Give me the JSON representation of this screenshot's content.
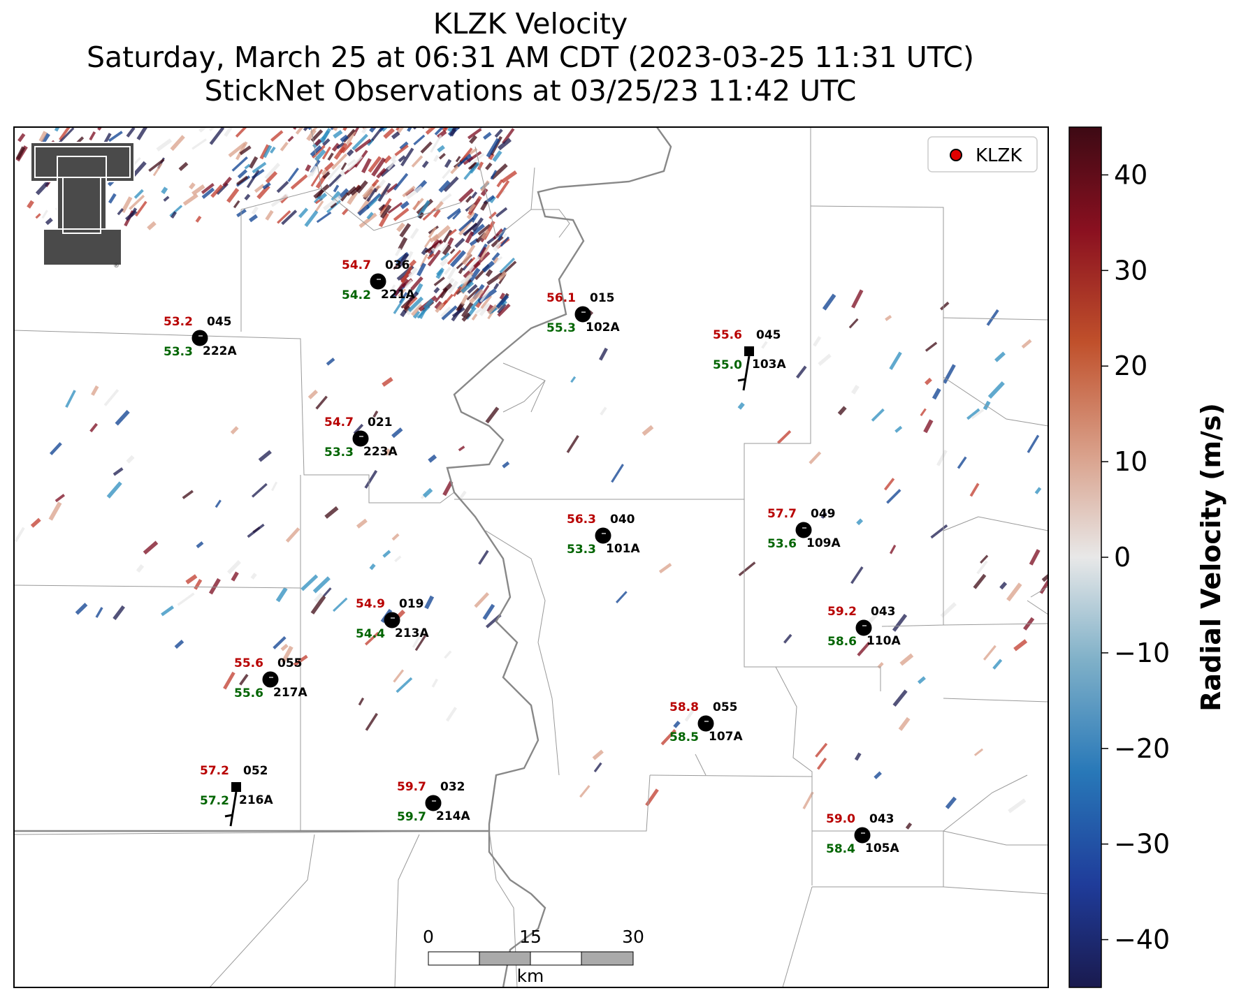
{
  "title": {
    "line1": "KLZK Velocity",
    "line2": "Saturday, March 25 at 06:31 AM CDT (2023-03-25 11:31 UTC)",
    "line3": "StickNet Observations at 03/25/23 11:42 UTC"
  },
  "legend": {
    "label": "KLZK",
    "marker_color": "#e00000"
  },
  "colorbar": {
    "label": "Radial Velocity (m/s)",
    "range": [
      -45,
      45
    ],
    "ticks": [
      "40",
      "30",
      "20",
      "10",
      "0",
      "−10",
      "−20",
      "−30",
      "−40"
    ],
    "tick_values": [
      40,
      30,
      20,
      10,
      0,
      -10,
      -20,
      -30,
      -40
    ],
    "colors": [
      "#e8e8e8",
      "#2b8cbe",
      "#0a3d8f",
      "#1a1a4e",
      "#d9a08a",
      "#c0392b",
      "#7a0a1e",
      "#3d0a14"
    ]
  },
  "scale_bar": {
    "ticks": [
      "0",
      "15",
      "30"
    ],
    "unit": "km"
  },
  "stations": [
    {
      "id": "221A",
      "temp": "54.7",
      "dew": "54.2",
      "dir": "036"
    },
    {
      "id": "222A",
      "temp": "53.2",
      "dew": "53.3",
      "dir": "045"
    },
    {
      "id": "102A",
      "temp": "56.1",
      "dew": "55.3",
      "dir": "015"
    },
    {
      "id": "103A",
      "temp": "55.6",
      "dew": "55.0",
      "dir": "045"
    },
    {
      "id": "223A",
      "temp": "54.7",
      "dew": "53.3",
      "dir": "021"
    },
    {
      "id": "101A",
      "temp": "56.3",
      "dew": "53.3",
      "dir": "040"
    },
    {
      "id": "109A",
      "temp": "57.7",
      "dew": "53.6",
      "dir": "049"
    },
    {
      "id": "213A",
      "temp": "54.9",
      "dew": "54.4",
      "dir": "019"
    },
    {
      "id": "110A",
      "temp": "59.2",
      "dew": "58.6",
      "dir": "043"
    },
    {
      "id": "217A",
      "temp": "55.6",
      "dew": "55.6",
      "dir": "055"
    },
    {
      "id": "107A",
      "temp": "58.8",
      "dew": "58.5",
      "dir": "055"
    },
    {
      "id": "216A",
      "temp": "57.2",
      "dew": "57.2",
      "dir": "052"
    },
    {
      "id": "214A",
      "temp": "59.7",
      "dew": "59.7",
      "dir": "032"
    },
    {
      "id": "105A",
      "temp": "59.0",
      "dew": "58.4",
      "dir": "043"
    }
  ]
}
